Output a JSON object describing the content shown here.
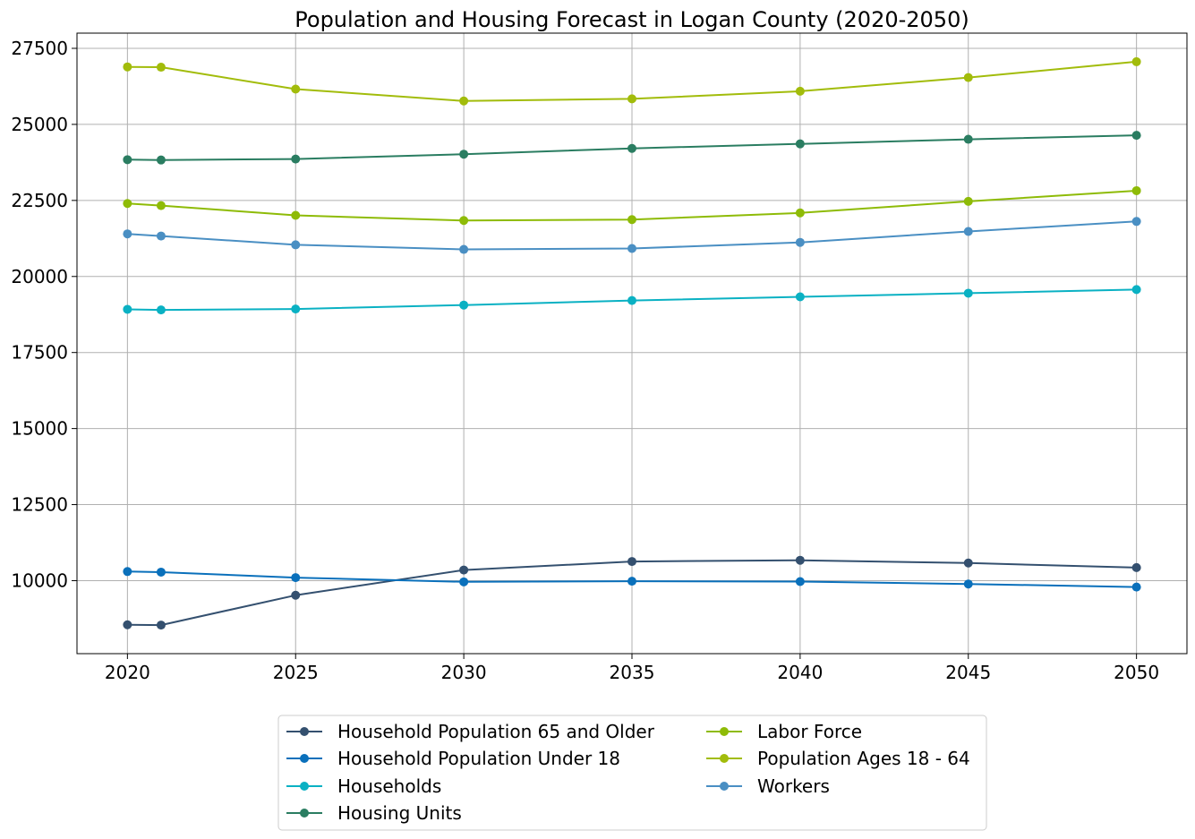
{
  "chart_data": {
    "type": "line",
    "title": "Population and Housing Forecast in Logan County (2020-2050)",
    "xlabel": "",
    "ylabel": "",
    "x": [
      2020,
      2021,
      2025,
      2030,
      2035,
      2040,
      2045,
      2050
    ],
    "xticks": [
      2020,
      2025,
      2030,
      2035,
      2040,
      2045,
      2050
    ],
    "yticks": [
      10000,
      12500,
      15000,
      17500,
      20000,
      22500,
      25000,
      27500
    ],
    "xlim": [
      2018.5,
      2051.5
    ],
    "ylim": [
      7600,
      28000
    ],
    "grid": true,
    "legend_position": "below chart, two columns",
    "series": [
      {
        "name": "Household Population 65 and Older",
        "color": "#34506f",
        "values": [
          8550,
          8540,
          9520,
          10350,
          10630,
          10670,
          10580,
          10430
        ]
      },
      {
        "name": "Household Population Under 18",
        "color": "#0a70bb",
        "values": [
          10300,
          10280,
          10100,
          9960,
          9980,
          9970,
          9890,
          9790
        ]
      },
      {
        "name": "Households",
        "color": "#0ab1c3",
        "values": [
          18920,
          18900,
          18930,
          19060,
          19210,
          19330,
          19450,
          19570
        ]
      },
      {
        "name": "Housing Units",
        "color": "#2a7d61",
        "values": [
          23840,
          23830,
          23860,
          24020,
          24210,
          24360,
          24510,
          24640
        ]
      },
      {
        "name": "Labor Force",
        "color": "#8ebb07",
        "values": [
          22400,
          22330,
          22010,
          21840,
          21870,
          22090,
          22470,
          22820
        ]
      },
      {
        "name": "Population Ages 18 - 64",
        "color": "#a2bc0b",
        "values": [
          26890,
          26880,
          26160,
          25770,
          25840,
          26090,
          26540,
          27060
        ]
      },
      {
        "name": "Workers",
        "color": "#4a8fc3",
        "values": [
          21400,
          21330,
          21040,
          20890,
          20920,
          21120,
          21480,
          21810
        ]
      }
    ]
  }
}
